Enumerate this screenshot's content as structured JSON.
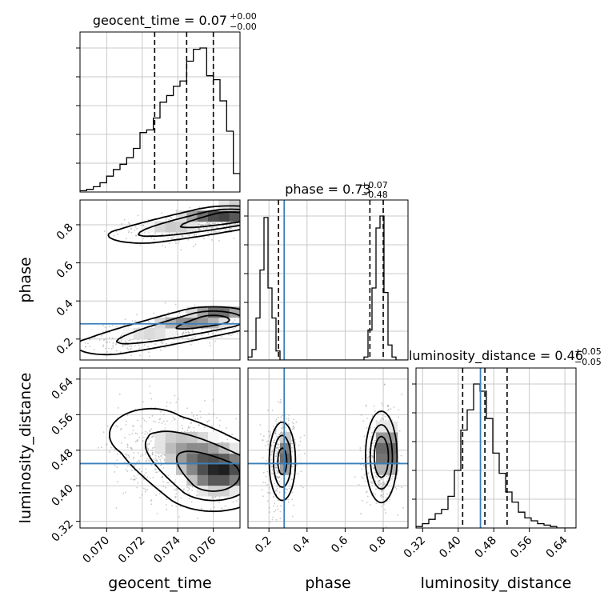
{
  "chart_data": {
    "type": "corner",
    "parameters": [
      {
        "name": "geocent_time",
        "xlabel": "geocent_time",
        "range": [
          0.0685,
          0.0775
        ],
        "ticks": [
          "0.070",
          "0.072",
          "0.074",
          "0.076"
        ],
        "tick_values": [
          0.07,
          0.072,
          0.074,
          0.076
        ]
      },
      {
        "name": "phase",
        "xlabel": "phase",
        "ylabel": "phase",
        "range": [
          0.09,
          0.93
        ],
        "ticks": [
          "0.2",
          "0.4",
          "0.6",
          "0.8"
        ],
        "tick_values": [
          0.2,
          0.4,
          0.6,
          0.8
        ]
      },
      {
        "name": "luminosity_distance",
        "xlabel": "luminosity_distance",
        "ylabel": "luminosity_distance",
        "range": [
          0.305,
          0.665
        ],
        "ticks": [
          "0.32",
          "0.40",
          "0.48",
          "0.56",
          "0.64"
        ],
        "tick_values": [
          0.32,
          0.4,
          0.48,
          0.56,
          0.64
        ]
      }
    ],
    "titles": [
      {
        "label": "geocent_time = ",
        "value": "0.07",
        "plus": "+0.00",
        "minus": "−0.00"
      },
      {
        "label": "phase = ",
        "value": "0.73",
        "plus": "+0.07",
        "minus": "−0.48"
      },
      {
        "label": "luminosity_distance = ",
        "value": "0.46",
        "plus": "+0.05",
        "minus": "−0.05"
      }
    ],
    "truths": {
      "geocent_time": null,
      "phase": 0.28,
      "luminosity_distance": 0.45
    },
    "quantiles": {
      "geocent_time": [
        0.0727,
        0.0745,
        0.076
      ],
      "phase": [
        0.25,
        0.73,
        0.8
      ],
      "luminosity_distance": [
        0.41,
        0.46,
        0.51
      ]
    },
    "histograms": {
      "geocent_time": {
        "edges_start": 0.0685,
        "bin_width": 0.000375,
        "counts": [
          1,
          2,
          4,
          7,
          12,
          17,
          21,
          26,
          33,
          45,
          47,
          56,
          68,
          73,
          80,
          84,
          99,
          108,
          109,
          88,
          85,
          69,
          46,
          14
        ]
      },
      "phase": {
        "edges_start": 0.09,
        "bin_width": 0.021,
        "counts": [
          2,
          7,
          28,
          60,
          95,
          48,
          28,
          6,
          0,
          0,
          0,
          0,
          0,
          0,
          0,
          0,
          0,
          0,
          0,
          0,
          0,
          0,
          0,
          0,
          0,
          0,
          0,
          0,
          0,
          2,
          20,
          48,
          88,
          96,
          45,
          10,
          2,
          0,
          0,
          0
        ]
      },
      "luminosity_distance": {
        "edges_start": 0.305,
        "bin_width": 0.0144,
        "counts": [
          1,
          3,
          6,
          10,
          13,
          22,
          40,
          68,
          82,
          100,
          95,
          76,
          52,
          38,
          25,
          18,
          11,
          7,
          5,
          3,
          2,
          1,
          0,
          0,
          0
        ]
      }
    },
    "modes": {
      "phase_vs_geocent_time": [
        {
          "x0": 0.072,
          "y0": 0.745,
          "x1": 0.077,
          "y1": 0.84,
          "sx": 0.0013,
          "sy": 0.028,
          "w": 0.55
        },
        {
          "x0": 0.07,
          "y0": 0.165,
          "x1": 0.076,
          "y1": 0.3,
          "sx": 0.0013,
          "sy": 0.035,
          "w": 0.45
        }
      ],
      "luminosity_distance_vs_geocent_time": [
        {
          "x0": 0.0725,
          "y0": 0.515,
          "x1": 0.076,
          "y1": 0.425,
          "sx": 0.0016,
          "sy": 0.04,
          "w": 1.0
        }
      ],
      "luminosity_distance_vs_phase": [
        {
          "x0": 0.27,
          "y0": 0.455,
          "x1": 0.27,
          "y1": 0.455,
          "sx": 0.035,
          "sy": 0.045,
          "w": 0.45
        },
        {
          "x0": 0.79,
          "y0": 0.465,
          "x1": 0.79,
          "y1": 0.465,
          "sx": 0.04,
          "sy": 0.05,
          "w": 0.55
        }
      ]
    },
    "grid": true,
    "colors": {
      "truth": "#3a7fba",
      "contour": "#000000",
      "hist": "#000000",
      "grid": "#c8c8c8",
      "sample": "#9a9a9a"
    }
  }
}
